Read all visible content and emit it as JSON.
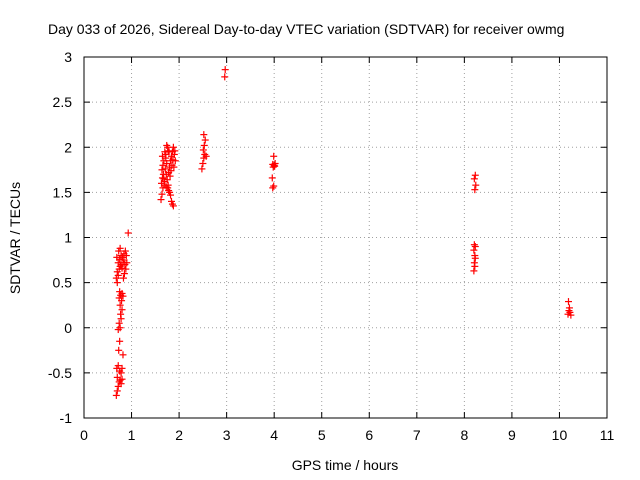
{
  "chart_data": {
    "type": "scatter",
    "title": "Day 033 of 2026, Sidereal Day-to-day VTEC variation (SDTVAR) for receiver owmg",
    "xlabel": "GPS time / hours",
    "ylabel": "SDTVAR / TECUs",
    "xlim": [
      0,
      11
    ],
    "ylim": [
      -1,
      3
    ],
    "xticks": [
      "0",
      "1",
      "2",
      "3",
      "4",
      "5",
      "6",
      "7",
      "8",
      "9",
      "10",
      "11"
    ],
    "yticks": [
      "-1",
      "-0.5",
      "0",
      "0.5",
      "1",
      "1.5",
      "2",
      "2.5",
      "3"
    ],
    "grid": true,
    "marker": "plus",
    "marker_color": "#ff0000",
    "series": [
      {
        "name": "SDTVAR",
        "points": [
          [
            0.68,
            -0.75
          ],
          [
            0.7,
            -0.7
          ],
          [
            0.72,
            -0.65
          ],
          [
            0.74,
            -0.6
          ],
          [
            0.76,
            -0.58
          ],
          [
            0.7,
            -0.55
          ],
          [
            0.78,
            -0.62
          ],
          [
            0.8,
            -0.57
          ],
          [
            0.69,
            -0.45
          ],
          [
            0.72,
            -0.42
          ],
          [
            0.75,
            -0.48
          ],
          [
            0.78,
            -0.5
          ],
          [
            0.8,
            -0.45
          ],
          [
            0.73,
            -0.25
          ],
          [
            0.82,
            -0.3
          ],
          [
            0.75,
            -0.15
          ],
          [
            0.72,
            -0.02
          ],
          [
            0.76,
            0.0
          ],
          [
            0.74,
            0.05
          ],
          [
            0.78,
            0.1
          ],
          [
            0.77,
            0.15
          ],
          [
            0.8,
            0.2
          ],
          [
            0.76,
            0.25
          ],
          [
            0.79,
            0.3
          ],
          [
            0.74,
            0.33
          ],
          [
            0.77,
            0.36
          ],
          [
            0.8,
            0.38
          ],
          [
            0.82,
            0.35
          ],
          [
            0.75,
            0.4
          ],
          [
            0.7,
            0.5
          ],
          [
            0.68,
            0.55
          ],
          [
            0.72,
            0.58
          ],
          [
            0.7,
            0.62
          ],
          [
            0.74,
            0.65
          ],
          [
            0.76,
            0.68
          ],
          [
            0.78,
            0.7
          ],
          [
            0.8,
            0.66
          ],
          [
            0.82,
            0.72
          ],
          [
            0.84,
            0.75
          ],
          [
            0.86,
            0.7
          ],
          [
            0.88,
            0.65
          ],
          [
            0.72,
            0.72
          ],
          [
            0.75,
            0.76
          ],
          [
            0.78,
            0.8
          ],
          [
            0.81,
            0.78
          ],
          [
            0.84,
            0.82
          ],
          [
            0.87,
            0.85
          ],
          [
            0.73,
            0.85
          ],
          [
            0.76,
            0.88
          ],
          [
            0.69,
            0.78
          ],
          [
            0.85,
            0.6
          ],
          [
            0.83,
            0.55
          ],
          [
            0.9,
            0.72
          ],
          [
            0.89,
            0.8
          ],
          [
            0.93,
            1.05
          ],
          [
            1.62,
            1.42
          ],
          [
            1.64,
            1.48
          ],
          [
            1.66,
            1.55
          ],
          [
            1.63,
            1.6
          ],
          [
            1.65,
            1.66
          ],
          [
            1.67,
            1.7
          ],
          [
            1.64,
            1.75
          ],
          [
            1.66,
            1.8
          ],
          [
            1.68,
            1.85
          ],
          [
            1.65,
            1.9
          ],
          [
            1.7,
            1.95
          ],
          [
            1.72,
            1.88
          ],
          [
            1.74,
            1.82
          ],
          [
            1.71,
            1.76
          ],
          [
            1.73,
            1.7
          ],
          [
            1.75,
            1.64
          ],
          [
            1.77,
            1.58
          ],
          [
            1.69,
            1.62
          ],
          [
            1.76,
            1.55
          ],
          [
            1.78,
            1.52
          ],
          [
            1.8,
            1.5
          ],
          [
            1.82,
            1.47
          ],
          [
            1.84,
            1.4
          ],
          [
            1.86,
            1.37
          ],
          [
            1.88,
            1.35
          ],
          [
            1.78,
            1.72
          ],
          [
            1.8,
            1.78
          ],
          [
            1.82,
            1.85
          ],
          [
            1.84,
            1.9
          ],
          [
            1.86,
            1.95
          ],
          [
            1.88,
            2.0
          ],
          [
            1.79,
            1.95
          ],
          [
            1.76,
            2.0
          ],
          [
            1.74,
            2.02
          ],
          [
            1.81,
            1.68
          ],
          [
            1.83,
            1.74
          ],
          [
            1.85,
            1.8
          ],
          [
            1.87,
            1.86
          ],
          [
            1.9,
            1.92
          ],
          [
            1.92,
            1.85
          ],
          [
            1.89,
            1.78
          ],
          [
            1.68,
            1.65
          ],
          [
            1.7,
            1.58
          ],
          [
            1.72,
            1.92
          ],
          [
            1.77,
            1.96
          ],
          [
            1.91,
            1.96
          ],
          [
            1.73,
            1.56
          ],
          [
            2.48,
            1.76
          ],
          [
            2.5,
            1.82
          ],
          [
            2.52,
            1.88
          ],
          [
            2.54,
            1.92
          ],
          [
            2.51,
            1.97
          ],
          [
            2.53,
            2.02
          ],
          [
            2.55,
            2.08
          ],
          [
            2.52,
            2.14
          ],
          [
            2.57,
            1.9
          ],
          [
            2.96,
            2.78
          ],
          [
            2.97,
            2.86
          ],
          [
            3.97,
            1.55
          ],
          [
            3.99,
            1.57
          ],
          [
            3.96,
            1.66
          ],
          [
            3.98,
            1.78
          ],
          [
            4.0,
            1.8
          ],
          [
            4.02,
            1.82
          ],
          [
            3.97,
            1.81
          ],
          [
            4.01,
            1.79
          ],
          [
            3.99,
            1.9
          ],
          [
            8.2,
            0.63
          ],
          [
            8.22,
            0.68
          ],
          [
            8.21,
            0.72
          ],
          [
            8.23,
            0.77
          ],
          [
            8.22,
            0.8
          ],
          [
            8.2,
            0.86
          ],
          [
            8.23,
            0.9
          ],
          [
            8.21,
            0.92
          ],
          [
            8.22,
            1.53
          ],
          [
            8.24,
            1.58
          ],
          [
            8.21,
            1.65
          ],
          [
            8.23,
            1.69
          ],
          [
            10.18,
            0.15
          ],
          [
            10.2,
            0.19
          ],
          [
            10.22,
            0.17
          ],
          [
            10.24,
            0.14
          ],
          [
            10.21,
            0.22
          ],
          [
            10.19,
            0.29
          ]
        ]
      }
    ]
  }
}
